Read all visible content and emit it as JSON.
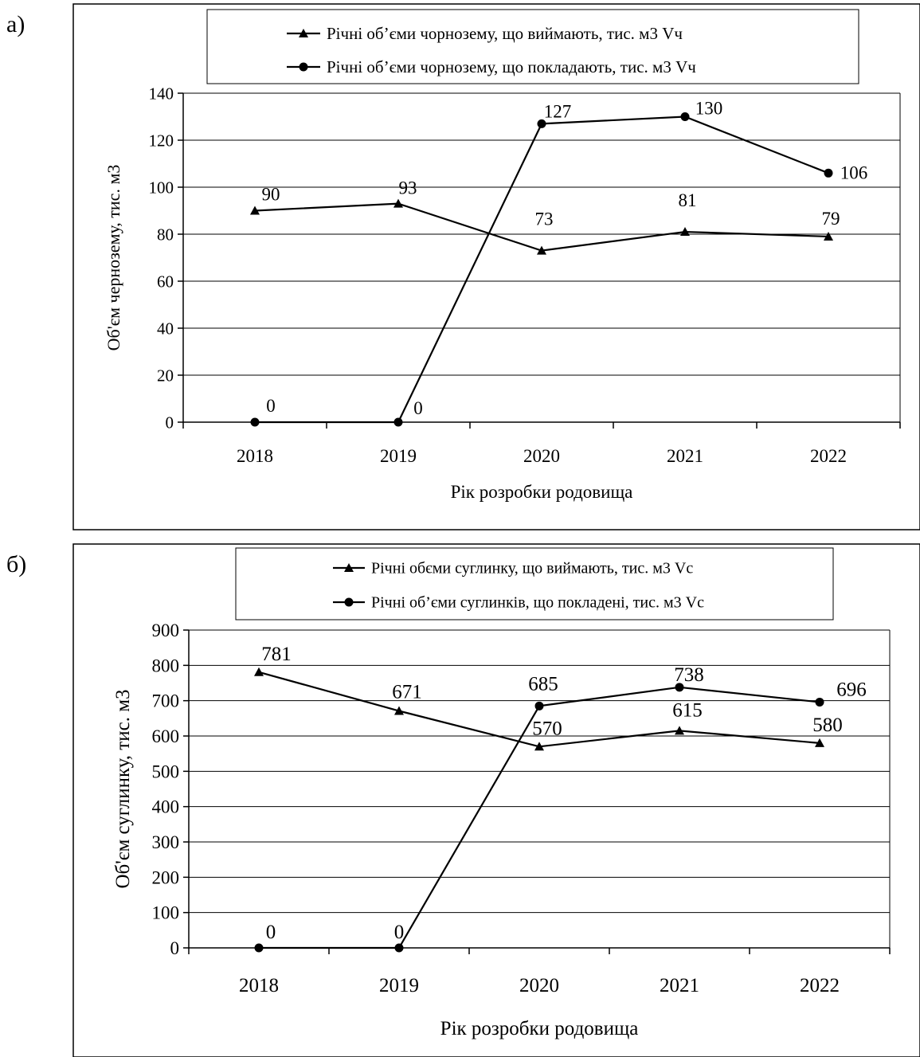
{
  "chart_data": [
    {
      "panel_label": "а)",
      "type": "line",
      "categories": [
        "2018",
        "2019",
        "2020",
        "2021",
        "2022"
      ],
      "series": [
        {
          "name": "Річні об’єми чорнозему, що виймають, тис. м3 Vч",
          "marker": "triangle",
          "values": [
            90,
            93,
            73,
            81,
            79
          ]
        },
        {
          "name": "Річні об’єми чорнозему, що покладають, тис. м3 Vч",
          "marker": "circle",
          "values": [
            0,
            0,
            127,
            130,
            106
          ]
        }
      ],
      "data_labels": [
        [
          "90",
          "93",
          "73",
          "81",
          "79"
        ],
        [
          "0",
          "0",
          "127",
          "130",
          "106"
        ]
      ],
      "ylabel": "Об'єм чернозему, тис. м3",
      "xlabel": "Рік розробки родовища",
      "ylim": [
        0,
        140
      ],
      "yticks": [
        0,
        20,
        40,
        60,
        80,
        100,
        120,
        140
      ],
      "grid": "horizontal",
      "legend": "top-center"
    },
    {
      "panel_label": "б)",
      "type": "line",
      "categories": [
        "2018",
        "2019",
        "2020",
        "2021",
        "2022"
      ],
      "series": [
        {
          "name": "Річні обєми суглинку, що виймають, тис. м3 Vc",
          "marker": "triangle",
          "values": [
            781,
            671,
            570,
            615,
            580
          ]
        },
        {
          "name": "Річні об’єми суглинків, що покладені, тис. м3 Vc",
          "marker": "circle",
          "values": [
            0,
            0,
            685,
            738,
            696
          ]
        }
      ],
      "data_labels": [
        [
          "781",
          "671",
          "570",
          "615",
          "580"
        ],
        [
          "0",
          "0",
          "685",
          "738",
          "696"
        ]
      ],
      "ylabel": "Об'єм суглинку, тис. м3",
      "xlabel": "Рік розробки родовища",
      "ylim": [
        0,
        900
      ],
      "yticks": [
        0,
        100,
        200,
        300,
        400,
        500,
        600,
        700,
        800,
        900
      ],
      "grid": "horizontal",
      "legend": "top-center"
    }
  ]
}
